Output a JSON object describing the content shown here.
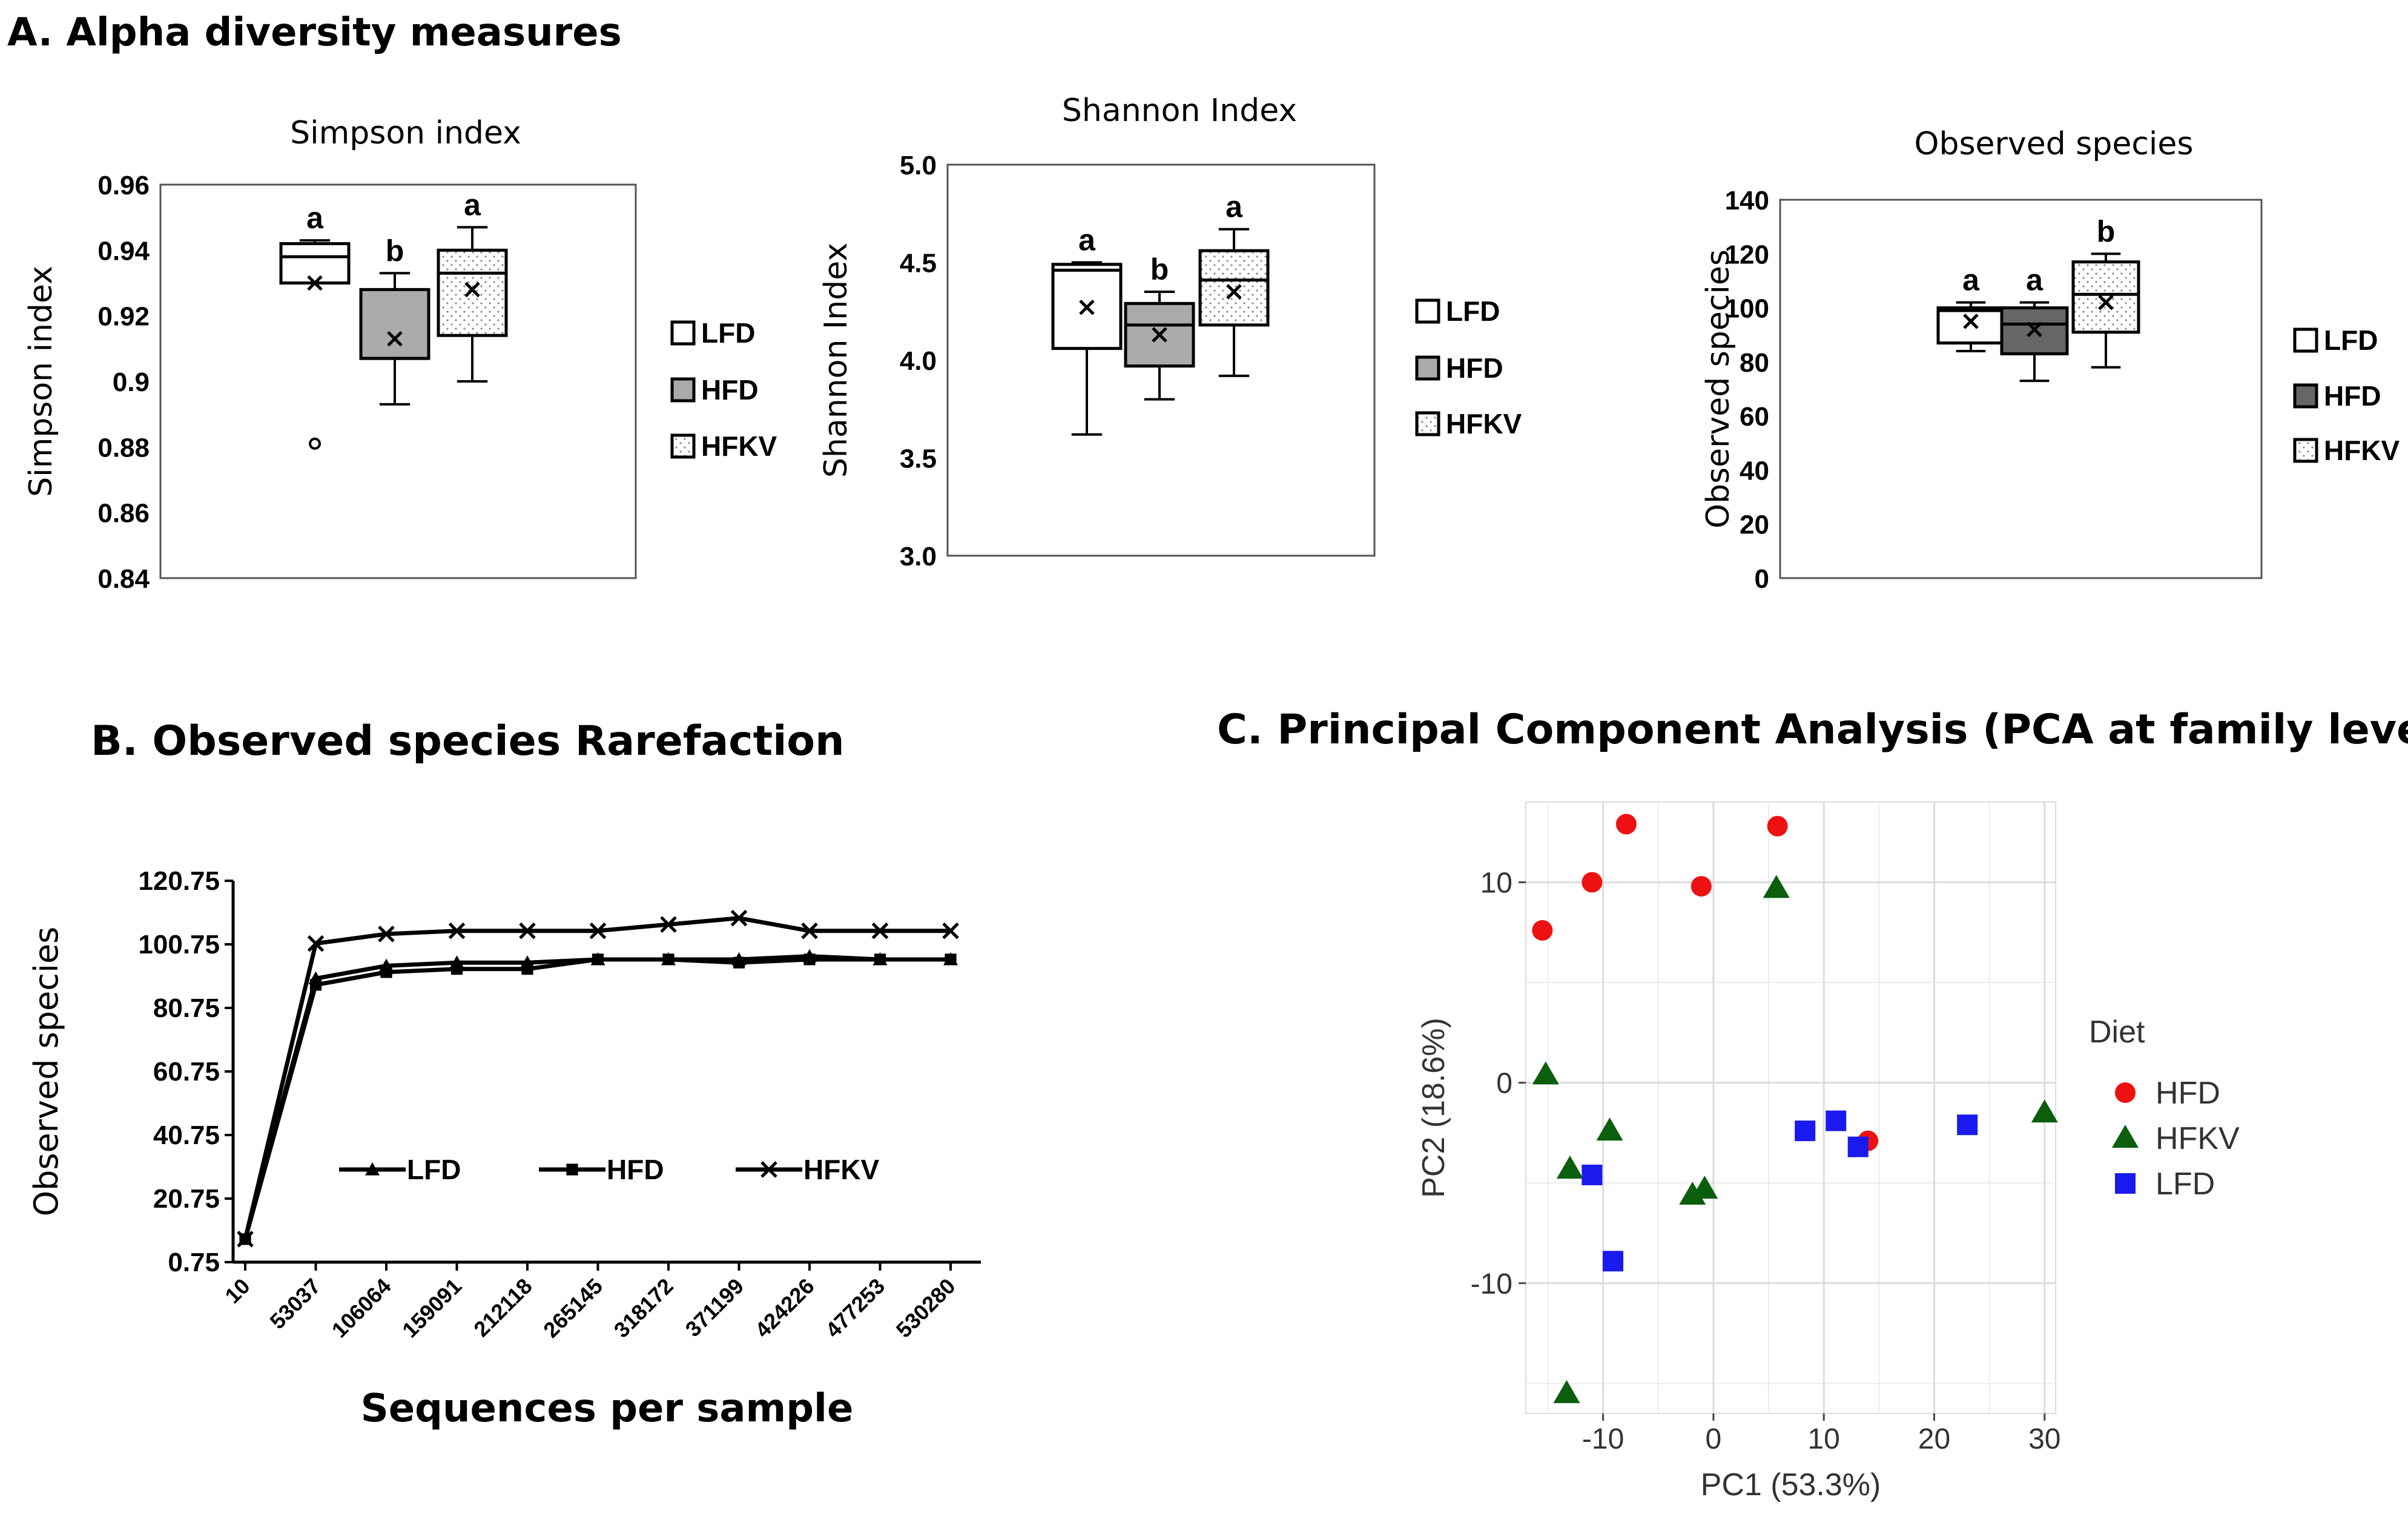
{
  "panels": {
    "A": {
      "title": "A. Alpha diversity measures"
    },
    "B": {
      "title": "B. Observed species Rarefaction"
    },
    "C": {
      "title": "C. Principal Component Analysis (PCA at family levels)"
    }
  },
  "chart_data": [
    {
      "id": "simpson",
      "type": "box",
      "title": "Simpson  index",
      "ylabel": "Simpson index",
      "ylim": [
        0.84,
        0.96
      ],
      "yticks": [
        {
          "value": 0.84,
          "label": "0.84"
        },
        {
          "value": 0.86,
          "label": "0.86"
        },
        {
          "value": 0.88,
          "label": "0.88"
        },
        {
          "value": 0.9,
          "label": "0.9"
        },
        {
          "value": 0.92,
          "label": "0.92"
        },
        {
          "value": 0.94,
          "label": "0.94"
        },
        {
          "value": 0.96,
          "label": "0.96"
        }
      ],
      "groups": [
        {
          "name": "LFD",
          "min": 0.93,
          "q1": 0.93,
          "median": 0.938,
          "q3": 0.942,
          "max": 0.943,
          "mean": 0.93,
          "outliers": [
            0.881
          ],
          "letter": "a",
          "fill": "white"
        },
        {
          "name": "HFD",
          "min": 0.893,
          "q1": 0.907,
          "median": 0.907,
          "q3": 0.928,
          "max": 0.933,
          "mean": 0.913,
          "outliers": [],
          "letter": "b",
          "fill": "gray"
        },
        {
          "name": "HFKV",
          "min": 0.9,
          "q1": 0.914,
          "median": 0.933,
          "q3": 0.94,
          "max": 0.947,
          "mean": 0.928,
          "outliers": [],
          "letter": "a",
          "fill": "dots"
        }
      ],
      "legend": [
        "LFD",
        "HFD",
        "HFKV"
      ]
    },
    {
      "id": "shannon",
      "type": "box",
      "title": "Shannon  Index",
      "ylabel": "Shannon  Index",
      "ylim": [
        3.0,
        5.0
      ],
      "yticks": [
        {
          "value": 3.0,
          "label": "3.0"
        },
        {
          "value": 3.5,
          "label": "3.5"
        },
        {
          "value": 4.0,
          "label": "4.0"
        },
        {
          "value": 4.5,
          "label": "4.5"
        },
        {
          "value": 5.0,
          "label": "5.0"
        }
      ],
      "groups": [
        {
          "name": "LFD",
          "min": 3.62,
          "q1": 4.06,
          "median": 4.46,
          "q3": 4.49,
          "max": 4.5,
          "mean": 4.27,
          "outliers": [],
          "letter": "a",
          "fill": "white"
        },
        {
          "name": "HFD",
          "min": 3.8,
          "q1": 3.97,
          "median": 4.18,
          "q3": 4.29,
          "max": 4.35,
          "mean": 4.13,
          "outliers": [],
          "letter": "b",
          "fill": "gray"
        },
        {
          "name": "HFKV",
          "min": 3.92,
          "q1": 4.18,
          "median": 4.41,
          "q3": 4.56,
          "max": 4.67,
          "mean": 4.35,
          "outliers": [],
          "letter": "a",
          "fill": "dots"
        }
      ],
      "legend": [
        "LFD",
        "HFD",
        "HFKV"
      ]
    },
    {
      "id": "observed",
      "type": "box",
      "title": "Observed species",
      "ylabel": "Observed species",
      "ylim": [
        0,
        140
      ],
      "yticks": [
        {
          "value": 0,
          "label": "0"
        },
        {
          "value": 20,
          "label": "20"
        },
        {
          "value": 40,
          "label": "40"
        },
        {
          "value": 60,
          "label": "60"
        },
        {
          "value": 80,
          "label": "80"
        },
        {
          "value": 100,
          "label": "100"
        },
        {
          "value": 120,
          "label": "120"
        },
        {
          "value": 140,
          "label": "140"
        }
      ],
      "groups": [
        {
          "name": "LFD",
          "min": 84,
          "q1": 87,
          "median": 99,
          "q3": 100,
          "max": 102,
          "mean": 95,
          "outliers": [],
          "letter": "a",
          "fill": "white"
        },
        {
          "name": "HFD",
          "min": 73,
          "q1": 83,
          "median": 94,
          "q3": 100,
          "max": 102,
          "mean": 92,
          "outliers": [],
          "letter": "a",
          "fill": "dark"
        },
        {
          "name": "HFKV",
          "min": 78,
          "q1": 91,
          "median": 105,
          "q3": 117,
          "max": 120,
          "mean": 102,
          "outliers": [],
          "letter": "b",
          "fill": "dots"
        }
      ],
      "legend": [
        "LFD",
        "HFD",
        "HFKV"
      ]
    },
    {
      "id": "rarefaction",
      "type": "line",
      "xlabel": "Sequences per sample",
      "ylabel": "Observed species",
      "categories": [
        "10",
        "53037",
        "106064",
        "159091",
        "212118",
        "265145",
        "318172",
        "371199",
        "424226",
        "477253",
        "530280"
      ],
      "ylim": [
        0.75,
        120.75
      ],
      "yticks": [
        "0.75",
        "20.75",
        "40.75",
        "60.75",
        "80.75",
        "100.75",
        "120.75"
      ],
      "series": [
        {
          "name": "LFD",
          "marker": "triangle",
          "values": [
            8,
            90,
            94,
            95,
            95,
            96,
            96,
            96,
            97,
            96,
            96
          ]
        },
        {
          "name": "HFD",
          "marker": "square",
          "values": [
            8,
            88,
            92,
            93,
            93,
            96,
            96,
            95,
            96,
            96,
            96
          ]
        },
        {
          "name": "HFKV",
          "marker": "x",
          "values": [
            8,
            101,
            104,
            105,
            105,
            105,
            107,
            109,
            105,
            105,
            105
          ]
        }
      ]
    },
    {
      "id": "pca",
      "type": "scatter",
      "xlabel": "PC1 (53.3%)",
      "ylabel": "PC2 (18.6%)",
      "xlim": [
        -17,
        31
      ],
      "ylim": [
        -16.5,
        14
      ],
      "xticks": [
        "-10",
        "0",
        "10",
        "20",
        "30"
      ],
      "yticks": [
        "-10",
        "0",
        "10"
      ],
      "legend_title": "Diet",
      "series": [
        {
          "name": "HFD",
          "marker": "circle",
          "color": "#ee1111",
          "points": [
            [
              -15.5,
              7.6
            ],
            [
              -11,
              10
            ],
            [
              -7.9,
              12.9
            ],
            [
              -1.1,
              9.8
            ],
            [
              5.8,
              12.8
            ],
            [
              14,
              -2.9
            ]
          ]
        },
        {
          "name": "HFKV",
          "marker": "triangle",
          "color": "#0b5e0b",
          "points": [
            [
              -15.2,
              0.4
            ],
            [
              -13,
              -4.3
            ],
            [
              -9.4,
              -2.4
            ],
            [
              -1.9,
              -5.6
            ],
            [
              -0.8,
              -5.3
            ],
            [
              5.7,
              9.7
            ],
            [
              -13.3,
              -15.5
            ],
            [
              30,
              -1.5
            ]
          ]
        },
        {
          "name": "LFD",
          "marker": "square",
          "color": "#1a1aee",
          "points": [
            [
              -11,
              -4.6
            ],
            [
              -9.1,
              -8.9
            ],
            [
              8.3,
              -2.4
            ],
            [
              11.1,
              -1.9
            ],
            [
              13.1,
              -3.2
            ],
            [
              23,
              -2.1
            ]
          ]
        }
      ]
    }
  ]
}
